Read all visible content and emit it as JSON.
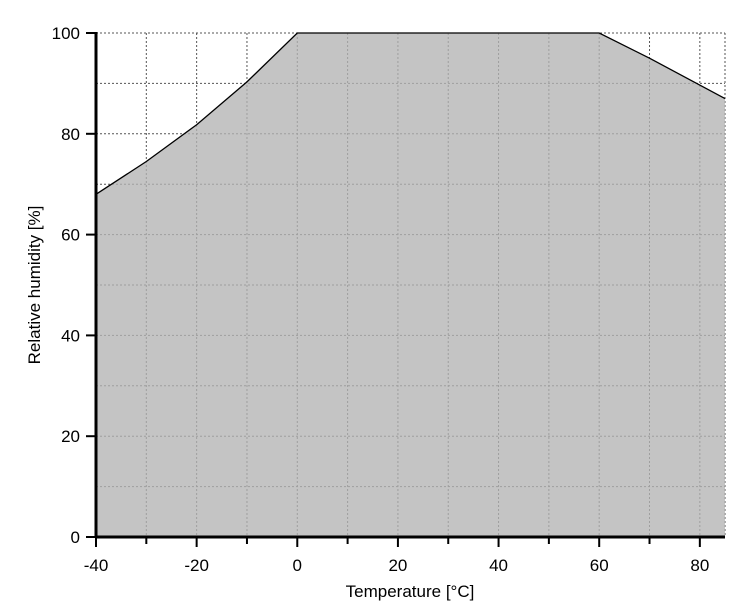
{
  "chart_data": {
    "type": "area",
    "title": "",
    "xlabel": "Temperature [°C]",
    "ylabel": "Relative humidity [%]",
    "xlim": [
      -40,
      85
    ],
    "ylim": [
      0,
      100
    ],
    "x_ticks": [
      -40,
      -20,
      0,
      20,
      40,
      60,
      80
    ],
    "x_minor_ticks": [
      -30,
      -10,
      10,
      30,
      50,
      70
    ],
    "y_ticks": [
      0,
      20,
      40,
      60,
      80,
      100
    ],
    "grid": true,
    "grid_style": "dotted",
    "fill_color": "#b3b3b3",
    "series": [
      {
        "x": [
          -40,
          -30,
          -20,
          -10,
          0,
          60,
          70,
          85
        ],
        "y": [
          68,
          74.5,
          81.8,
          90.3,
          100,
          100,
          95,
          87
        ]
      }
    ]
  }
}
